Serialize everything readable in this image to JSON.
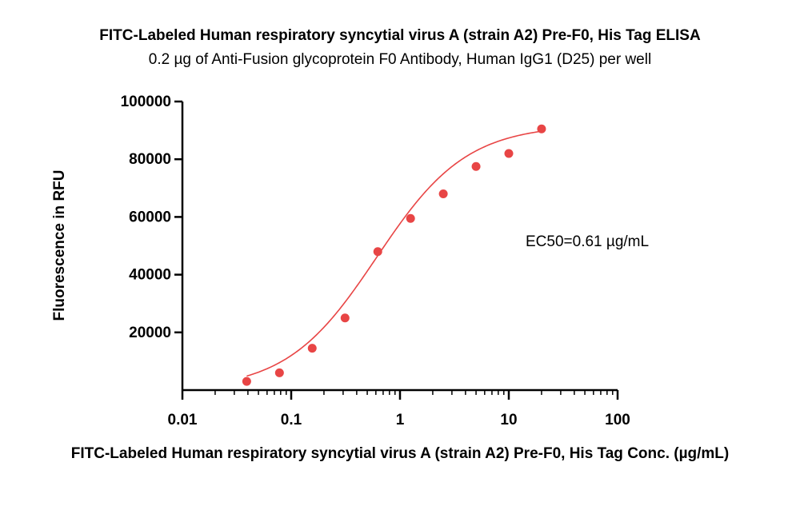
{
  "chart_data": {
    "type": "scatter",
    "title": "FITC-Labeled Human respiratory syncytial virus A (strain A2) Pre-F0, His Tag ELISA",
    "subtitle": "0.2 µg of Anti-Fusion glycoprotein F0 Antibody, Human IgG1 (D25) per well",
    "xlabel": "FITC-Labeled Human respiratory syncytial virus A (strain A2) Pre-F0, His Tag Conc. (µg/mL)",
    "ylabel": "Fluorescence in RFU",
    "x_scale": "log",
    "xlim": [
      0.01,
      100
    ],
    "ylim": [
      0,
      100000
    ],
    "x_ticks": [
      0.01,
      0.1,
      1,
      10,
      100
    ],
    "x_tick_labels": [
      "0.01",
      "0.1",
      "1",
      "10",
      "100"
    ],
    "y_ticks": [
      20000,
      40000,
      60000,
      80000,
      100000
    ],
    "y_tick_labels": [
      "20000",
      "40000",
      "60000",
      "80000",
      "100000"
    ],
    "annotation": "EC50=0.61  µg/mL",
    "grid": false,
    "color": "#e84545",
    "points": {
      "x": [
        0.039,
        0.078,
        0.156,
        0.3125,
        0.625,
        1.25,
        2.5,
        5,
        10,
        20
      ],
      "y": [
        3000,
        6000,
        14500,
        25000,
        48000,
        59500,
        68000,
        77500,
        82000,
        90500
      ]
    },
    "fit_curve": {
      "x_range": [
        0.039,
        20
      ],
      "bottom": 0,
      "top": 92000,
      "ec50": 0.61,
      "hill": 1.05
    }
  }
}
